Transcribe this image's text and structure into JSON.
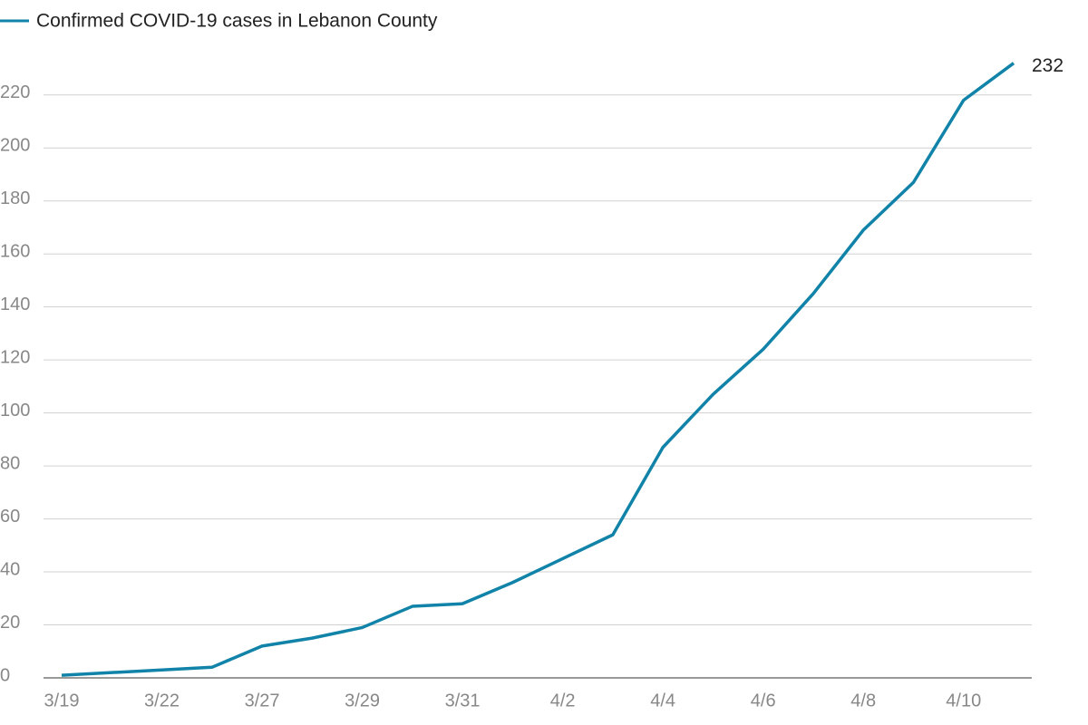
{
  "chart_data": {
    "type": "line",
    "categories": [
      "3/19",
      null,
      "3/22",
      null,
      "3/27",
      null,
      "3/29",
      null,
      "3/31",
      null,
      "4/2",
      null,
      "4/4",
      null,
      "4/6",
      null,
      "4/8",
      null,
      "4/10",
      null
    ],
    "series": [
      {
        "name": "Confirmed COVID-19 cases in Lebanon County",
        "color": "#1183a8",
        "values": [
          1,
          2,
          3,
          4,
          12,
          15,
          19,
          27,
          28,
          36,
          45,
          54,
          87,
          107,
          124,
          145,
          169,
          187,
          218,
          232
        ]
      }
    ],
    "ylim": [
      0,
      236
    ],
    "yticks": [
      0,
      20,
      40,
      60,
      80,
      100,
      120,
      140,
      160,
      180,
      200,
      220
    ],
    "grid": true
  }
}
